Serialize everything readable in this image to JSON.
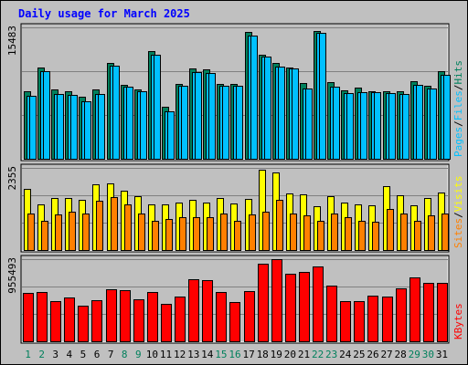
{
  "chart_data": {
    "type": "bar",
    "title": "Daily usage for March 2025",
    "colors": {
      "background": "#c0c0c0",
      "title": "#0000ff",
      "hits": "#00805c",
      "files": "#00c0ff",
      "pages": "#00c0ff",
      "visits": "#ffff00",
      "sites": "#ff8000",
      "kbytes": "#ff0000",
      "weekday_label": "#000000",
      "weekend_label": "#00805c",
      "grid": "#808080"
    },
    "days": [
      "1",
      "2",
      "3",
      "4",
      "5",
      "6",
      "7",
      "8",
      "9",
      "10",
      "11",
      "12",
      "13",
      "14",
      "15",
      "16",
      "17",
      "18",
      "19",
      "20",
      "21",
      "22",
      "23",
      "24",
      "25",
      "26",
      "27",
      "28",
      "29",
      "30",
      "31"
    ],
    "weekend_days": [
      "1",
      "2",
      "8",
      "9",
      "15",
      "16",
      "22",
      "23",
      "29",
      "30"
    ],
    "panels": [
      {
        "id": "hits-files-pages",
        "max_label": "15483",
        "ylim": [
          0,
          15483
        ],
        "grid_values": [
          5161,
          10322
        ],
        "axis_labels": [
          {
            "text": "Pages",
            "color": "#00c0ff"
          },
          {
            "text": "/",
            "color": "#000000"
          },
          {
            "text": "Files",
            "color": "#00c0ff"
          },
          {
            "text": "/",
            "color": "#000000"
          },
          {
            "text": "Hits",
            "color": "#00805c"
          }
        ],
        "series": [
          {
            "name": "Hits",
            "color": "#00805c",
            "values": [
              8000,
              10800,
              8200,
              8000,
              7300,
              8200,
              11300,
              8700,
              8200,
              12700,
              6100,
              8800,
              10600,
              10500,
              8800,
              8800,
              14900,
              12300,
              11300,
              10800,
              8900,
              15100,
              9000,
              8100,
              8400,
              8000,
              8000,
              8000,
              9100,
              8600,
              10300
            ]
          },
          {
            "name": "Files",
            "color": "#00c0ff",
            "values": [
              7400,
              10300,
              7600,
              7500,
              6800,
              7600,
              11000,
              8500,
              8000,
              12300,
              5600,
              8600,
              10200,
              10100,
              8600,
              8600,
              14500,
              12000,
              10900,
              10600,
              8300,
              14800,
              8500,
              7700,
              7800,
              7800,
              7700,
              7600,
              8700,
              8300,
              9900
            ]
          },
          {
            "name": "Pages",
            "color": "#00c0ff",
            "values": [
              7400,
              10300,
              7600,
              7500,
              6800,
              7600,
              11000,
              8500,
              8000,
              12300,
              5600,
              8600,
              10200,
              10100,
              8600,
              8600,
              14500,
              12000,
              10900,
              10600,
              8300,
              14800,
              8500,
              7700,
              7800,
              7800,
              7700,
              7600,
              8700,
              8300,
              9900
            ]
          }
        ]
      },
      {
        "id": "sites-visits",
        "max_label": "2355",
        "ylim": [
          0,
          2355
        ],
        "grid_values": [
          785,
          1570
        ],
        "axis_labels": [
          {
            "text": "Sites",
            "color": "#ff8000"
          },
          {
            "text": "/",
            "color": "#000000"
          },
          {
            "text": "Visits",
            "color": "#ffff00"
          }
        ],
        "series": [
          {
            "name": "Visits",
            "color": "#ffff00",
            "values": [
              1750,
              1300,
              1500,
              1500,
              1450,
              1890,
              1920,
              1700,
              1550,
              1300,
              1300,
              1370,
              1450,
              1370,
              1480,
              1330,
              1460,
              2300,
              2220,
              1630,
              1600,
              1250,
              1550,
              1350,
              1300,
              1270,
              1820,
              1560,
              1280,
              1500,
              1650
            ]
          },
          {
            "name": "Sites",
            "color": "#ff8000",
            "values": [
              1050,
              850,
              1030,
              1100,
              1050,
              1400,
              1520,
              1320,
              1050,
              850,
              900,
              930,
              950,
              950,
              1050,
              850,
              1030,
              1100,
              1450,
              1050,
              1000,
              850,
              1050,
              950,
              830,
              800,
              1170,
              1050,
              850,
              1000,
              1050
            ]
          }
        ]
      },
      {
        "id": "kbytes",
        "max_label": "955493",
        "ylim": [
          0,
          955493
        ],
        "grid_values": [
          318498,
          636995
        ],
        "axis_labels": [
          {
            "text": "KBytes",
            "color": "#ff0000"
          }
        ],
        "series": [
          {
            "name": "KBytes",
            "color": "#ff0000",
            "values": [
              560000,
              570000,
              470000,
              510000,
              410000,
              480000,
              600000,
              590000,
              490000,
              570000,
              430000,
              520000,
              720000,
              710000,
              570000,
              460000,
              580000,
              900000,
              960000,
              790000,
              810000,
              870000,
              650000,
              470000,
              470000,
              530000,
              520000,
              620000,
              740000,
              680000,
              680000
            ]
          }
        ]
      }
    ]
  }
}
